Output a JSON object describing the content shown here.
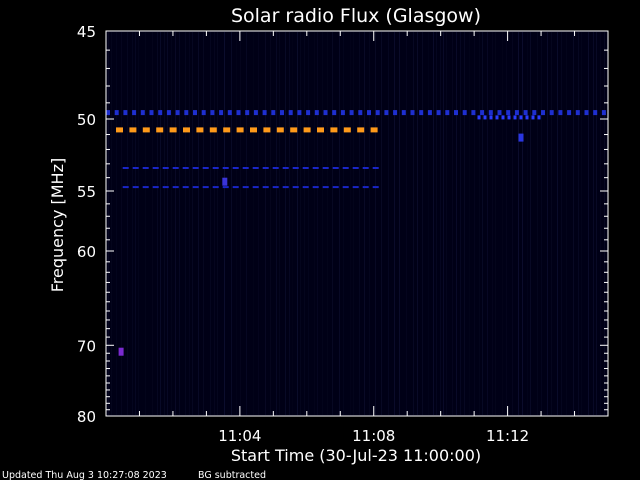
{
  "chart_data": {
    "type": "heatmap",
    "title": "Solar radio Flux (Glasgow)",
    "xlabel": "Start Time (30-Jul-23 11:00:00)",
    "ylabel": "Frequency [MHz]",
    "x_ticks": [
      "11:04",
      "11:08",
      "11:12"
    ],
    "x_tick_minutes": [
      4,
      8,
      12
    ],
    "xlim_minutes": [
      0,
      15
    ],
    "y_ticks": [
      45,
      50,
      55,
      60,
      70,
      80
    ],
    "ylim": [
      45,
      80
    ],
    "y_scale": "reciprocal",
    "features": [
      {
        "label": "blue-dashed-band",
        "freq": 49.6,
        "t_start": 0.0,
        "t_end": 15.0,
        "color": "#1e2fd0"
      },
      {
        "label": "orange-band",
        "freq": 50.7,
        "t_start": 0.3,
        "t_end": 8.2,
        "color": "#ff9a1a"
      },
      {
        "label": "blue-band",
        "freq": 53.3,
        "t_start": 0.5,
        "t_end": 8.2,
        "color": "#1a26c8"
      },
      {
        "label": "blue-band",
        "freq": 54.7,
        "t_start": 0.5,
        "t_end": 8.2,
        "color": "#1a26c8"
      },
      {
        "label": "bright-blue-band",
        "freq": 49.9,
        "t_start": 11.1,
        "t_end": 13.1,
        "color": "#2a3cff"
      }
    ],
    "spots": [
      {
        "t": 0.45,
        "freq": 70.8,
        "color": "#7a2ad0"
      },
      {
        "t": 3.55,
        "freq": 54.3,
        "color": "#3a34d8"
      },
      {
        "t": 12.4,
        "freq": 51.2,
        "color": "#2a36e0"
      }
    ],
    "background_color": "#000016"
  },
  "footer": {
    "updated": "Updated Thu Aug  3 10:27:08 2023",
    "note": "BG subtracted"
  }
}
